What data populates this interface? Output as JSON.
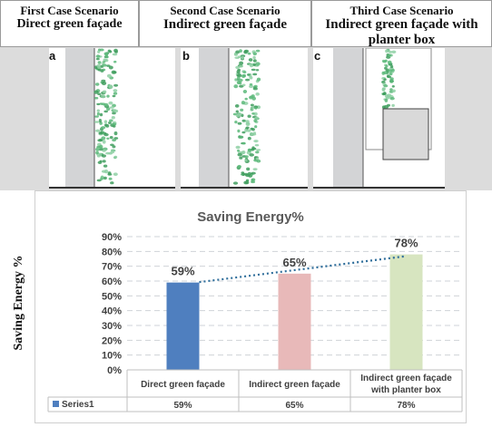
{
  "scenarios": [
    {
      "line1": "First Case Scenario",
      "line2": "Direct green façade",
      "panel_letter": "a"
    },
    {
      "line1": "Second Case Scenario",
      "line2": "Indirect green façade",
      "panel_letter": "b"
    },
    {
      "line1": "Third Case Scenario",
      "line2": "Indirect green façade with planter box",
      "panel_letter": "c"
    }
  ],
  "colors": {
    "leaf": "#5cb87a",
    "wall": "#d3d4d6",
    "grid": "#cfd3d8",
    "trend": "#2f6e9b"
  },
  "chart_data": {
    "type": "bar",
    "title": "Saving Energy%",
    "ylabel": "Saving Energy %",
    "xlabel": "",
    "ylim": [
      0,
      90
    ],
    "ytick_step": 10,
    "yticks": [
      "0%",
      "10%",
      "20%",
      "30%",
      "40%",
      "50%",
      "60%",
      "70%",
      "80%",
      "90%"
    ],
    "categories": [
      "Direct green façade",
      "Indirect green façade",
      "Indirect green façade with planter box"
    ],
    "category_lines": [
      [
        "Direct green façade"
      ],
      [
        "Indirect green façade"
      ],
      [
        "Indirect green façade",
        "with planter box"
      ]
    ],
    "bar_colors": [
      "#4f7fbf",
      "#e8b9b9",
      "#d7e5c0"
    ],
    "series": [
      {
        "name": "Series1",
        "values": [
          59,
          65,
          78
        ],
        "labels": [
          "59%",
          "65%",
          "78%"
        ],
        "legend_color": "#4f7fbf"
      }
    ],
    "trendline": "linear",
    "data_table": true
  }
}
